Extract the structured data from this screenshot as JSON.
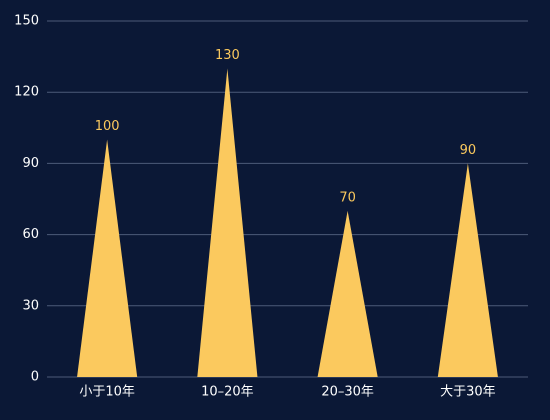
{
  "chart_data": {
    "type": "pictorialBar",
    "categories": [
      "小于10年",
      "10–20年",
      "20–30年",
      "大于30年"
    ],
    "values": [
      100,
      130,
      70,
      90
    ],
    "color": "#fbc95e",
    "ylim": [
      0,
      150
    ],
    "yticks": [
      0,
      30,
      60,
      90,
      120,
      150
    ],
    "grid": true
  }
}
